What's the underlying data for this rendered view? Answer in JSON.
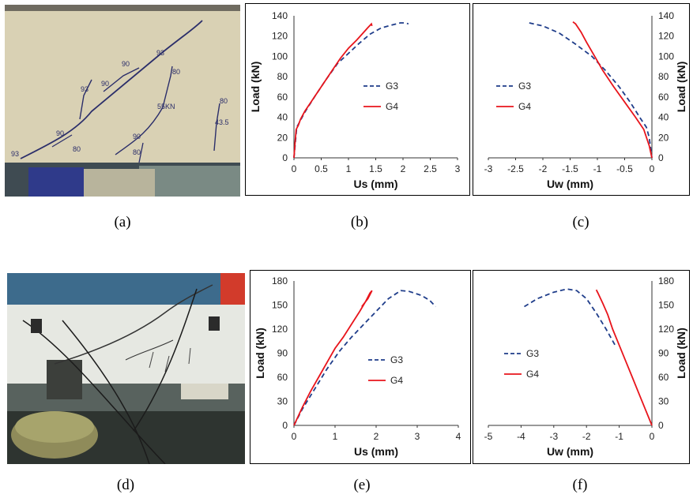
{
  "captions": [
    "(a)",
    "(b)",
    "(c)",
    "(d)",
    "(e)",
    "(f)"
  ],
  "photo_a": {
    "annotations": [
      "93",
      "90",
      "90",
      "93",
      "80",
      "55KN",
      "90",
      "80",
      "80",
      "43.5",
      "90",
      "80",
      "93"
    ]
  },
  "colors": {
    "G3": "#1f3d8a",
    "G4": "#e8141b"
  },
  "chart_data": [
    {
      "id": "b",
      "type": "line",
      "xlabel": "Us (mm)",
      "ylabel": "Load (kN)",
      "xlim": [
        0,
        3
      ],
      "ylim": [
        0,
        140
      ],
      "xticks": [
        "0",
        "0.5",
        "1",
        "1.5",
        "2",
        "2.5",
        "3"
      ],
      "yticks": [
        "0",
        "20",
        "40",
        "60",
        "80",
        "100",
        "120",
        "140"
      ],
      "legend_position": "right",
      "series": [
        {
          "name": "G3",
          "style": "dashed",
          "points": [
            [
              0,
              0
            ],
            [
              0.05,
              30
            ],
            [
              0.2,
              45
            ],
            [
              0.4,
              62
            ],
            [
              0.6,
              78
            ],
            [
              0.8,
              93
            ],
            [
              1.0,
              103
            ],
            [
              1.2,
              113
            ],
            [
              1.4,
              122
            ],
            [
              1.6,
              128
            ],
            [
              1.8,
              131
            ],
            [
              1.95,
              133
            ],
            [
              2.05,
              133
            ],
            [
              2.1,
              132
            ]
          ]
        },
        {
          "name": "G4",
          "style": "solid",
          "points": [
            [
              0,
              0
            ],
            [
              0.02,
              15
            ],
            [
              0.04,
              28
            ],
            [
              0.08,
              32
            ],
            [
              0.12,
              38
            ],
            [
              0.2,
              46
            ],
            [
              0.35,
              58
            ],
            [
              0.5,
              70
            ],
            [
              0.7,
              86
            ],
            [
              0.85,
              98
            ],
            [
              1.0,
              108
            ],
            [
              1.15,
              116
            ],
            [
              1.25,
              122
            ],
            [
              1.35,
              128
            ],
            [
              1.42,
              132
            ],
            [
              1.43,
              130
            ]
          ]
        }
      ]
    },
    {
      "id": "c",
      "type": "line",
      "xlabel": "Uw (mm)",
      "ylabel": "Load (kN)",
      "xlim": [
        -3,
        0
      ],
      "ylim": [
        0,
        140
      ],
      "xticks": [
        "-3",
        "-2.5",
        "-2",
        "-1.5",
        "-1",
        "-0.5",
        "0"
      ],
      "yticks": [
        "0",
        "20",
        "40",
        "60",
        "80",
        "100",
        "120",
        "140"
      ],
      "legend_position": "left",
      "series": [
        {
          "name": "G3",
          "style": "dashed",
          "points": [
            [
              -2.25,
              133
            ],
            [
              -2.0,
              130
            ],
            [
              -1.7,
              123
            ],
            [
              -1.4,
              112
            ],
            [
              -1.1,
              100
            ],
            [
              -0.85,
              86
            ],
            [
              -0.6,
              70
            ],
            [
              -0.4,
              55
            ],
            [
              -0.2,
              38
            ],
            [
              -0.1,
              30
            ],
            [
              -0.05,
              20
            ],
            [
              0,
              0
            ]
          ]
        },
        {
          "name": "G4",
          "style": "solid",
          "points": [
            [
              -1.45,
              134
            ],
            [
              -1.4,
              132
            ],
            [
              -1.3,
              124
            ],
            [
              -1.2,
              114
            ],
            [
              -1.05,
              100
            ],
            [
              -0.9,
              86
            ],
            [
              -0.7,
              70
            ],
            [
              -0.5,
              55
            ],
            [
              -0.3,
              40
            ],
            [
              -0.15,
              28
            ],
            [
              -0.05,
              12
            ],
            [
              0,
              0
            ]
          ]
        }
      ]
    },
    {
      "id": "e",
      "type": "line",
      "xlabel": "Us (mm)",
      "ylabel": "Load (kN)",
      "xlim": [
        0,
        4
      ],
      "ylim": [
        0,
        180
      ],
      "xticks": [
        "0",
        "1",
        "2",
        "3",
        "4"
      ],
      "yticks": [
        "0",
        "30",
        "60",
        "90",
        "120",
        "150",
        "180"
      ],
      "legend_position": "right",
      "series": [
        {
          "name": "G3",
          "style": "dashed",
          "points": [
            [
              0,
              0
            ],
            [
              0.2,
              20
            ],
            [
              0.5,
              45
            ],
            [
              0.8,
              70
            ],
            [
              1.1,
              92
            ],
            [
              1.4,
              110
            ],
            [
              1.7,
              126
            ],
            [
              2.0,
              142
            ],
            [
              2.3,
              158
            ],
            [
              2.6,
              168
            ],
            [
              2.8,
              167
            ],
            [
              3.1,
              162
            ],
            [
              3.3,
              156
            ],
            [
              3.45,
              148
            ]
          ]
        },
        {
          "name": "G4",
          "style": "solid",
          "points": [
            [
              0,
              0
            ],
            [
              0.2,
              22
            ],
            [
              0.4,
              42
            ],
            [
              0.6,
              60
            ],
            [
              0.8,
              78
            ],
            [
              1.0,
              96
            ],
            [
              1.2,
              110
            ],
            [
              1.4,
              126
            ],
            [
              1.6,
              142
            ],
            [
              1.75,
              155
            ],
            [
              1.85,
              165
            ],
            [
              1.9,
              168
            ],
            [
              1.8,
              158
            ],
            [
              1.65,
              148
            ]
          ]
        }
      ]
    },
    {
      "id": "f",
      "type": "line",
      "xlabel": "Uw (mm)",
      "ylabel": "Load (kN)",
      "xlim": [
        -5,
        0
      ],
      "ylim": [
        0,
        180
      ],
      "xticks": [
        "-5",
        "-4",
        "-3",
        "-2",
        "-1",
        "0"
      ],
      "yticks": [
        "0",
        "30",
        "60",
        "90",
        "120",
        "150",
        "180"
      ],
      "legend_position": "left",
      "series": [
        {
          "name": "G3",
          "style": "dashed",
          "points": [
            [
              -3.9,
              148
            ],
            [
              -3.5,
              158
            ],
            [
              -3.0,
              166
            ],
            [
              -2.6,
              170
            ],
            [
              -2.3,
              168
            ],
            [
              -2.0,
              158
            ],
            [
              -1.7,
              140
            ],
            [
              -1.4,
              120
            ],
            [
              -1.1,
              98
            ]
          ]
        },
        {
          "name": "G4",
          "style": "solid",
          "points": [
            [
              -1.7,
              169
            ],
            [
              -1.65,
              165
            ],
            [
              -1.5,
              152
            ],
            [
              -1.35,
              138
            ],
            [
              -1.2,
              120
            ],
            [
              -1.0,
              100
            ],
            [
              -0.8,
              80
            ],
            [
              -0.6,
              60
            ],
            [
              -0.4,
              40
            ],
            [
              -0.2,
              20
            ],
            [
              -0.05,
              5
            ],
            [
              0,
              0
            ]
          ]
        }
      ]
    }
  ]
}
